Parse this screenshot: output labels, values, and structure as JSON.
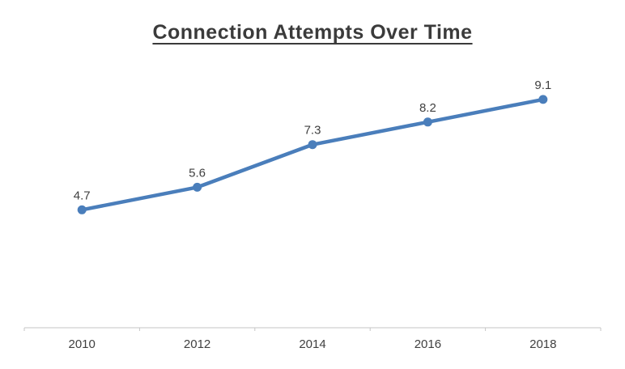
{
  "chart_data": {
    "type": "line",
    "title": "Connection Attempts Over Time",
    "categories": [
      "2010",
      "2012",
      "2014",
      "2016",
      "2018"
    ],
    "series": [
      {
        "name": "Connection Attempts",
        "values": [
          4.7,
          5.6,
          7.3,
          8.2,
          9.1
        ]
      }
    ],
    "data_labels": [
      "4.7",
      "5.6",
      "7.3",
      "8.2",
      "9.1"
    ],
    "xlabel": "",
    "ylabel": "",
    "ylim": [
      0,
      10
    ],
    "grid": false,
    "legend_position": "none",
    "colors": {
      "line": "#4a7ebb",
      "marker": "#4a7ebb",
      "data_label": "#404040",
      "axis_line": "#c6c6c6",
      "tick_label": "#404040",
      "title": "#3b3b3b"
    }
  }
}
